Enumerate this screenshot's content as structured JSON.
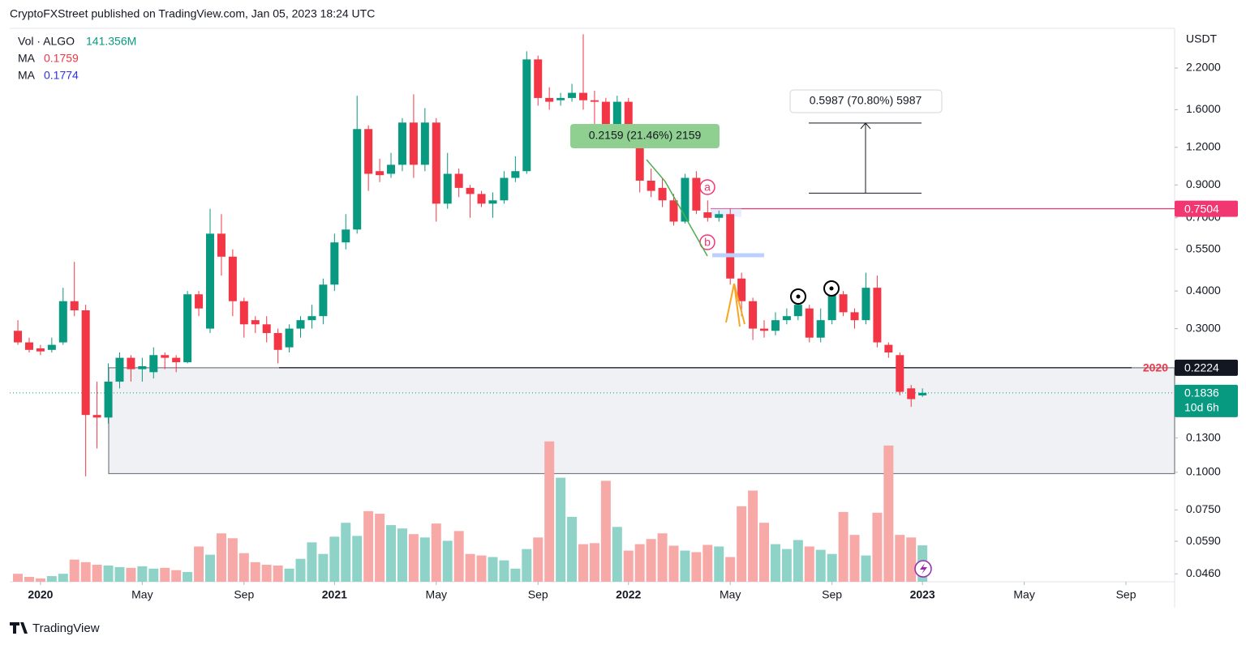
{
  "header": "CryptoFXStreet published on TradingView.com, Jan 05, 2023 18:24 UTC",
  "footer": "TradingView",
  "chart_data": {
    "type": "candlestick",
    "currency": "USDT",
    "legend": {
      "volume": "Vol · ALGO",
      "volume_value": "141.356M",
      "ma1": "MA",
      "ma1_value": "0.1759",
      "ma1_color": "#f23645",
      "ma2": "MA",
      "ma2_value": "0.1774",
      "ma2_color": "#2e32e6"
    },
    "log_scale": true,
    "grid": false,
    "ylim": [
      0.0433,
      2.98
    ],
    "yticks": [
      {
        "value": 2.2,
        "label": "2.2000"
      },
      {
        "value": 1.6,
        "label": "1.6000"
      },
      {
        "value": 1.2,
        "label": "1.2000"
      },
      {
        "value": 0.9,
        "label": "0.9000"
      },
      {
        "value": 0.7,
        "label": "0.7000"
      },
      {
        "value": 0.55,
        "label": "0.5500"
      },
      {
        "value": 0.4,
        "label": "0.4000"
      },
      {
        "value": 0.3,
        "label": "0.3000"
      },
      {
        "value": 0.13,
        "label": "0.1300"
      },
      {
        "value": 0.1,
        "label": "0.1000"
      },
      {
        "value": 0.075,
        "label": "0.0750"
      },
      {
        "value": 0.059,
        "label": "0.0590"
      },
      {
        "value": 0.046,
        "label": "0.0460"
      }
    ],
    "xlim": [
      -0.72,
      102.3
    ],
    "xticks": [
      {
        "value": 2,
        "label": "2020"
      },
      {
        "value": 11,
        "label": "May"
      },
      {
        "value": 20,
        "label": "Sep"
      },
      {
        "value": 28,
        "label": "2021"
      },
      {
        "value": 37,
        "label": "May"
      },
      {
        "value": 46,
        "label": "Sep"
      },
      {
        "value": 54,
        "label": "2022"
      },
      {
        "value": 63,
        "label": "May"
      },
      {
        "value": 72,
        "label": "Sep"
      },
      {
        "value": 80,
        "label": "2023"
      },
      {
        "value": 89,
        "label": "May"
      },
      {
        "value": 98,
        "label": "Sep"
      }
    ],
    "up_color": "#089981",
    "down_color": "#f23645",
    "up_volume_color": "#8fd3c8",
    "down_volume_color": "#f7a9a7",
    "open": [
      0.295,
      0.27,
      0.258,
      0.255,
      0.27,
      0.37,
      0.345,
      0.155,
      0.152,
      0.2,
      0.24,
      0.22,
      0.215,
      0.245,
      0.24,
      0.232,
      0.39,
      0.3,
      0.62,
      0.52,
      0.37,
      0.32,
      0.31,
      0.29,
      0.26,
      0.3,
      0.32,
      0.33,
      0.42,
      0.58,
      0.64,
      1.38,
      1.0,
      0.98,
      1.05,
      1.45,
      1.05,
      1.45,
      0.78,
      0.98,
      0.88,
      0.84,
      0.78,
      0.8,
      0.95,
      1.0,
      2.35,
      1.75,
      1.72,
      1.75,
      1.82,
      1.72,
      1.7,
      1.3,
      1.7,
      1.38,
      0.93,
      0.88,
      0.8,
      0.68,
      0.95,
      0.73,
      0.7,
      0.72,
      0.44,
      0.37,
      0.3,
      0.295,
      0.32,
      0.33,
      0.35,
      0.28,
      0.32,
      0.39,
      0.34,
      0.32,
      0.41,
      0.265,
      0.245,
      0.19,
      0.18
    ],
    "high": [
      0.32,
      0.28,
      0.265,
      0.28,
      0.41,
      0.5,
      0.36,
      0.2,
      0.23,
      0.25,
      0.245,
      0.24,
      0.26,
      0.25,
      0.245,
      0.4,
      0.4,
      0.75,
      0.72,
      0.55,
      0.38,
      0.33,
      0.33,
      0.3,
      0.31,
      0.33,
      0.36,
      0.44,
      0.62,
      0.72,
      1.78,
      1.42,
      1.1,
      1.15,
      1.5,
      1.8,
      1.62,
      1.5,
      1.15,
      1.02,
      0.9,
      0.86,
      0.85,
      1.0,
      1.12,
      2.5,
      2.42,
      1.9,
      1.82,
      1.95,
      2.85,
      1.85,
      1.75,
      1.78,
      1.75,
      1.42,
      1.02,
      0.95,
      0.84,
      0.98,
      1.0,
      0.8,
      0.74,
      0.75,
      0.46,
      0.38,
      0.32,
      0.34,
      0.35,
      0.4,
      0.36,
      0.35,
      0.41,
      0.4,
      0.35,
      0.46,
      0.45,
      0.27,
      0.25,
      0.195,
      0.19
    ],
    "low": [
      0.265,
      0.25,
      0.245,
      0.25,
      0.265,
      0.33,
      0.097,
      0.12,
      0.145,
      0.19,
      0.2,
      0.2,
      0.205,
      0.22,
      0.215,
      0.23,
      0.33,
      0.29,
      0.45,
      0.33,
      0.28,
      0.29,
      0.27,
      0.23,
      0.25,
      0.28,
      0.3,
      0.31,
      0.4,
      0.55,
      0.62,
      0.86,
      0.92,
      0.95,
      1.0,
      0.95,
      1.0,
      0.68,
      0.75,
      0.82,
      0.7,
      0.76,
      0.7,
      0.78,
      0.92,
      0.98,
      1.65,
      1.6,
      1.65,
      1.7,
      1.6,
      1.4,
      1.2,
      1.25,
      1.2,
      0.85,
      0.82,
      0.76,
      0.66,
      0.67,
      0.72,
      0.68,
      0.68,
      0.42,
      0.33,
      0.275,
      0.28,
      0.285,
      0.31,
      0.32,
      0.27,
      0.27,
      0.31,
      0.33,
      0.3,
      0.31,
      0.26,
      0.24,
      0.18,
      0.165,
      0.178
    ],
    "close": [
      0.27,
      0.255,
      0.252,
      0.265,
      0.37,
      0.345,
      0.155,
      0.152,
      0.2,
      0.24,
      0.22,
      0.225,
      0.245,
      0.24,
      0.232,
      0.39,
      0.35,
      0.62,
      0.52,
      0.37,
      0.31,
      0.31,
      0.29,
      0.255,
      0.3,
      0.32,
      0.33,
      0.42,
      0.58,
      0.64,
      1.38,
      0.98,
      0.97,
      1.05,
      1.45,
      1.05,
      1.45,
      0.78,
      0.98,
      0.88,
      0.84,
      0.78,
      0.8,
      0.95,
      1.0,
      2.35,
      1.75,
      1.7,
      1.75,
      1.82,
      1.72,
      1.7,
      1.3,
      1.7,
      1.35,
      0.93,
      0.86,
      0.8,
      0.68,
      0.95,
      0.74,
      0.7,
      0.72,
      0.44,
      0.37,
      0.3,
      0.295,
      0.32,
      0.33,
      0.36,
      0.28,
      0.32,
      0.39,
      0.34,
      0.32,
      0.41,
      0.27,
      0.25,
      0.185,
      0.175,
      0.1836
    ],
    "close_labels_last": "0.1836",
    "countdown": "10d 6h",
    "volume": [
      31,
      19,
      13,
      22,
      31,
      86,
      76,
      66,
      63,
      57,
      54,
      60,
      51,
      54,
      45,
      38,
      137,
      105,
      188,
      169,
      111,
      76,
      66,
      63,
      51,
      89,
      153,
      108,
      175,
      229,
      178,
      274,
      264,
      220,
      207,
      185,
      172,
      226,
      159,
      197,
      108,
      102,
      96,
      83,
      51,
      127,
      172,
      545,
      404,
      252,
      146,
      150,
      392,
      213,
      121,
      146,
      166,
      188,
      140,
      121,
      115,
      143,
      137,
      96,
      293,
      354,
      229,
      146,
      127,
      162,
      137,
      124,
      108,
      271,
      182,
      102,
      268,
      529,
      182,
      172,
      141.356
    ],
    "vlim": [
      0,
      560
    ],
    "price_lines": [
      {
        "value": 0.7504,
        "label": "0.7504",
        "color": "#f23672"
      },
      {
        "value": 0.2224,
        "label": "0.2224",
        "color": "#131722"
      }
    ],
    "zone": [
      0.099,
      0.2224
    ],
    "zone_label": "2020",
    "measure": {
      "from": 0.8456,
      "to": 1.4443,
      "label": "0.5987 (70.80%) 5987"
    },
    "measure2_label": "0.2159 (21.46%) 2159",
    "points": [
      "a",
      "b"
    ]
  }
}
